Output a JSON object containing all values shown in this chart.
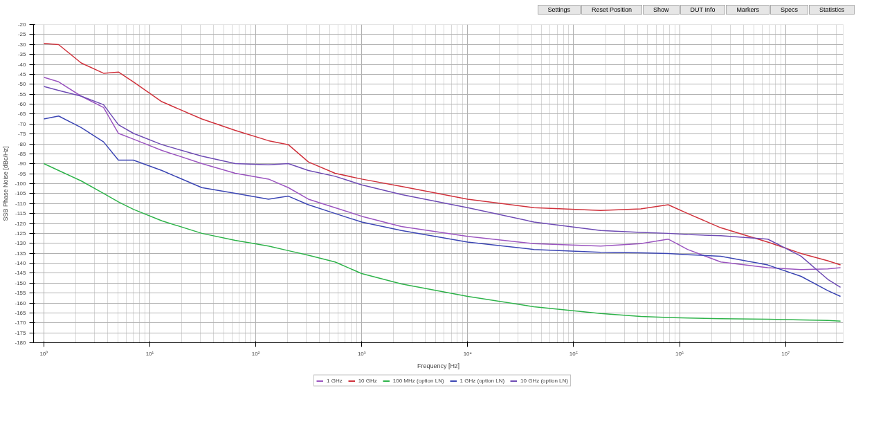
{
  "chart_data": {
    "type": "line",
    "xlabel": "Frequency [Hz]",
    "ylabel": "SSB Phase Noise [dBc/Hz]",
    "x": [
      1,
      1.38,
      2.25,
      3.66,
      5.06,
      7.0,
      13,
      31,
      64,
      132,
      203,
      314,
      560,
      1000,
      2370,
      10000,
      42200,
      180000,
      430000,
      780000,
      1190000,
      2450000,
      6800000,
      14000000,
      25000000,
      33000000
    ],
    "series": [
      {
        "name": "1 GHz",
        "color": "#9b55c0",
        "values": [
          -46.5,
          -48.8,
          -56,
          -61.7,
          -74.7,
          -77.6,
          -83.3,
          -89.9,
          -94.8,
          -97.7,
          -102,
          -107.8,
          -112.1,
          -116.4,
          -121.6,
          -126.5,
          -130.2,
          -131.4,
          -130.2,
          -127.9,
          -133.1,
          -139.4,
          -142.3,
          -143.2,
          -142.9,
          -142.3
        ]
      },
      {
        "name": "10 GHz",
        "color": "#d0323c",
        "values": [
          -29.5,
          -30.1,
          -39.3,
          -44.5,
          -43.9,
          -48.8,
          -58.8,
          -67.5,
          -73.2,
          -78.4,
          -80.4,
          -89.1,
          -94.8,
          -97.7,
          -101.4,
          -107.8,
          -112.1,
          -113.5,
          -112.7,
          -110.6,
          -115,
          -122.2,
          -129.4,
          -135.1,
          -138.8,
          -140.9
        ]
      },
      {
        "name": "100 MHz (option LN)",
        "color": "#2eb34a",
        "values": [
          -89.9,
          -93.4,
          -98.6,
          -104.9,
          -109.2,
          -112.9,
          -118.7,
          -125,
          -128.5,
          -131.4,
          -133.7,
          -136,
          -139.4,
          -145.2,
          -150.4,
          -156.7,
          -161.9,
          -165.3,
          -166.8,
          -167.3,
          -167.6,
          -167.9,
          -168.2,
          -168.5,
          -168.8,
          -169.1
        ]
      },
      {
        "name": "1 GHz (option LN)",
        "color": "#3c46b4",
        "values": [
          -67.5,
          -66,
          -71.8,
          -79,
          -88.2,
          -88.2,
          -93.4,
          -102,
          -104.9,
          -107.8,
          -106.3,
          -110.6,
          -115,
          -119.3,
          -123.6,
          -129.4,
          -133.1,
          -134.5,
          -134.8,
          -135.1,
          -135.7,
          -136.5,
          -140.9,
          -146.6,
          -153.8,
          -156.7
        ]
      },
      {
        "name": "10 GHz (option LN)",
        "color": "#6e4bb4",
        "values": [
          -51.1,
          -53.1,
          -56,
          -60.3,
          -70.4,
          -74.7,
          -80.4,
          -86.2,
          -89.9,
          -90.5,
          -89.9,
          -93.4,
          -96.3,
          -100.6,
          -105.5,
          -112.1,
          -119.3,
          -123.6,
          -124.5,
          -125,
          -125.6,
          -126.2,
          -127.9,
          -136.5,
          -148.1,
          -152.1
        ]
      }
    ],
    "log": "x",
    "xlim": [
      0.8,
      35000000
    ],
    "xticks": [
      {
        "value": 1,
        "label": "10⁰"
      },
      {
        "value": 10,
        "label": "10¹"
      },
      {
        "value": 100,
        "label": "10²"
      },
      {
        "value": 1000,
        "label": "10³"
      },
      {
        "value": 10000,
        "label": "10⁴"
      },
      {
        "value": 100000,
        "label": "10⁵"
      },
      {
        "value": 1000000,
        "label": "10⁶"
      },
      {
        "value": 10000000,
        "label": "10⁷"
      }
    ],
    "ylim": [
      -180,
      -20
    ],
    "yticks": [
      -180,
      -175,
      -170,
      -165,
      -160,
      -155,
      -150,
      -145,
      -140,
      -135,
      -130,
      -125,
      -120,
      -115,
      -110,
      -105,
      -100,
      -95,
      -90,
      -85,
      -80,
      -75,
      -70,
      -65,
      -60,
      -55,
      -50,
      -45,
      -40,
      -35,
      -30,
      -25,
      -20
    ],
    "grid": true,
    "legend": "bottom",
    "marker": "none",
    "line_style": "solid",
    "annotations": [
      "Settings",
      "Reset Position",
      "Show",
      "DUT Info",
      "Markers",
      "Specs",
      "Statistics"
    ]
  }
}
